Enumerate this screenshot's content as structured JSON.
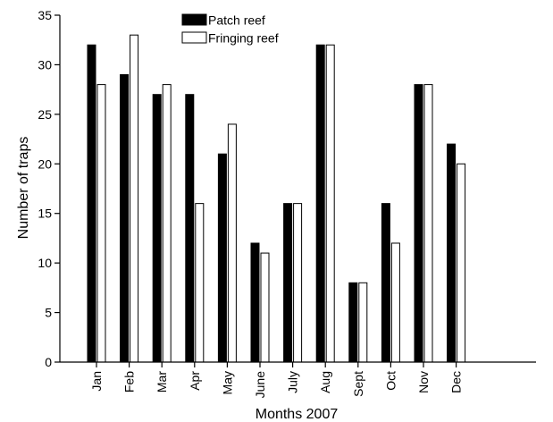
{
  "chart_data": {
    "type": "bar",
    "title": "",
    "xlabel": "Months 2007",
    "ylabel": "Number of traps",
    "ylim": [
      0,
      35
    ],
    "yticks": [
      0,
      5,
      10,
      15,
      20,
      25,
      30,
      35
    ],
    "grid": false,
    "legend_position": "top-center",
    "categories": [
      "Jan",
      "Feb",
      "Mar",
      "Apr",
      "May",
      "June",
      "July",
      "Aug",
      "Sept",
      "Oct",
      "Nov",
      "Dec"
    ],
    "series": [
      {
        "name": "Patch reef",
        "color": "#000000",
        "values": [
          32,
          29,
          27,
          27,
          21,
          12,
          16,
          32,
          8,
          16,
          28,
          22
        ]
      },
      {
        "name": "Fringing reef",
        "color": "#ffffff",
        "values": [
          28,
          33,
          28,
          16,
          24,
          11,
          16,
          32,
          8,
          12,
          28,
          20
        ]
      }
    ]
  }
}
